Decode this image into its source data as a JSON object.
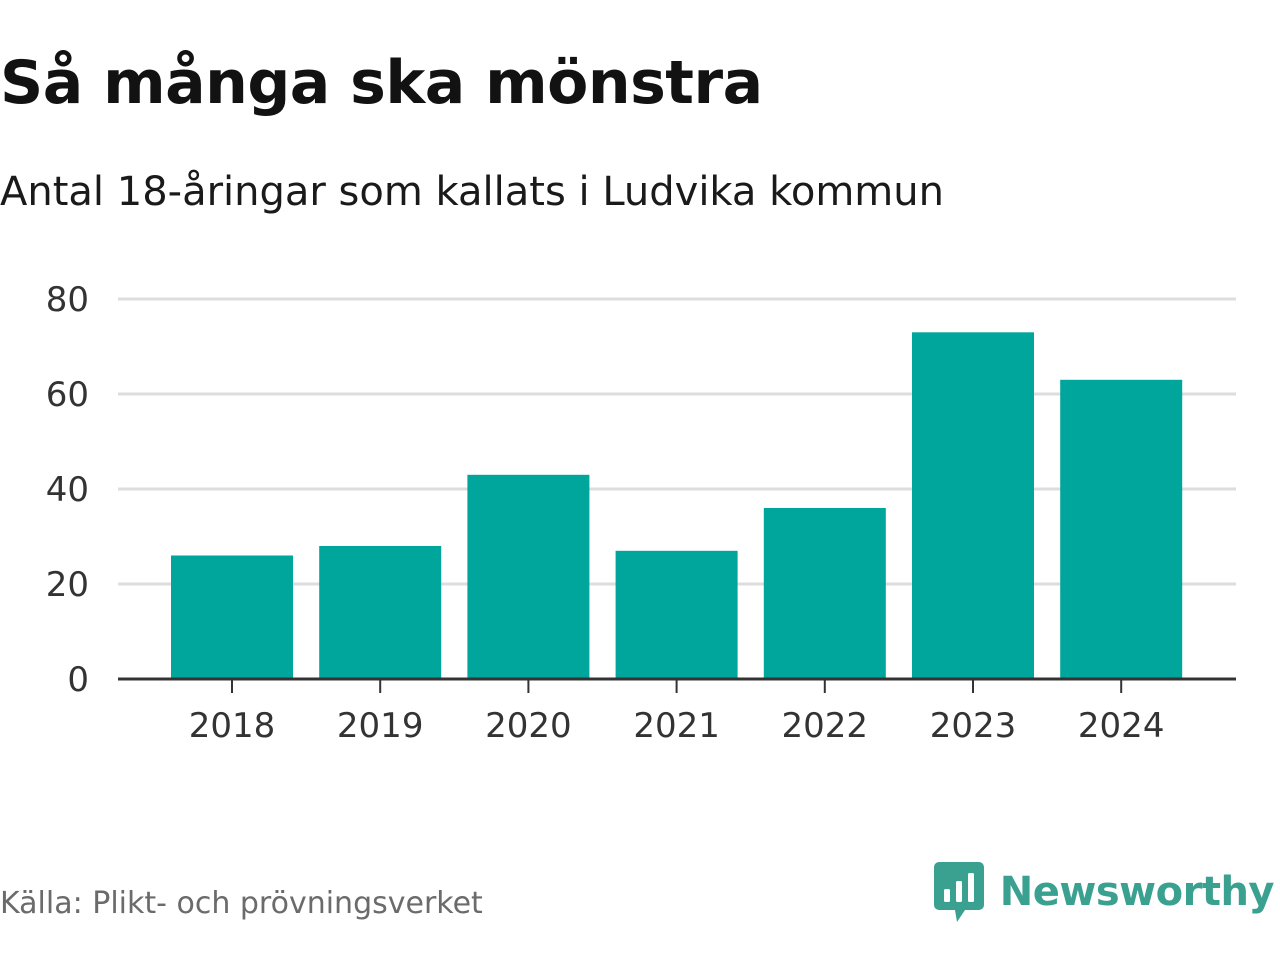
{
  "header": {
    "title": "Så många ska mönstra",
    "subtitle": "Antal 18-åringar som kallats i Ludvika kommun"
  },
  "footer": {
    "source": "Källa: Plikt- och prövningsverket",
    "brand": "Newsworthy",
    "brand_logo_icon": "newsworthy-chart-bubble-icon"
  },
  "colors": {
    "bar": "#00a59b",
    "grid": "#dddddd",
    "axis": "#333333",
    "brand": "#3aa08f"
  },
  "chart_data": {
    "type": "bar",
    "title": "Så många ska mönstra",
    "subtitle": "Antal 18-åringar som kallats i Ludvika kommun",
    "categories": [
      "2018",
      "2019",
      "2020",
      "2021",
      "2022",
      "2023",
      "2024"
    ],
    "values": [
      26,
      28,
      43,
      27,
      36,
      73,
      63
    ],
    "xlabel": "",
    "ylabel": "",
    "ylim": [
      0,
      80
    ],
    "yticks": [
      0,
      20,
      40,
      60,
      80
    ],
    "grid": true,
    "legend": "none"
  }
}
